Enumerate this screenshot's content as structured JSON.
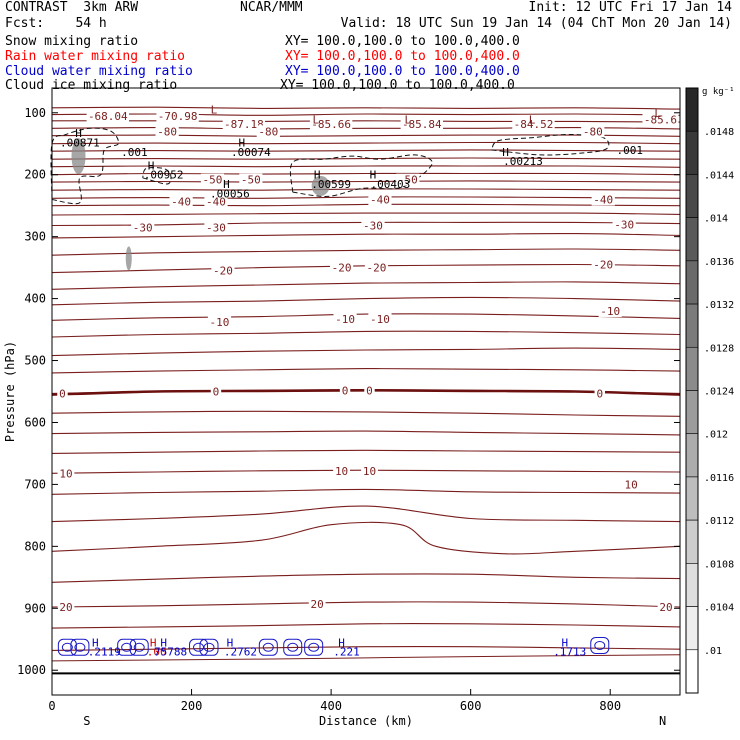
{
  "header": {
    "left_line1": "CONTRAST  3km ARW",
    "center_line1": "NCAR/MMM",
    "right_line1": "Init: 12 UTC Fri 17 Jan 14",
    "left_line2": "Fcst:    54 h",
    "right_line2": "Valid: 18 UTC Sun 19 Jan 14 (04 ChT Mon 20 Jan 14)",
    "fields": [
      {
        "name": "Snow mixing ratio",
        "xy": "XY= 100.0,100.0 to 100.0,400.0",
        "color": "#000000"
      },
      {
        "name": "Rain water mixing ratio",
        "xy": "XY= 100.0,100.0 to 100.0,400.0",
        "color": "#ff0000"
      },
      {
        "name": "Cloud water mixing ratio",
        "xy": "XY= 100.0,100.0 to 100.0,400.0",
        "color": "#0000cc"
      },
      {
        "name": "Cloud ice mixing ratio",
        "xy": "XY= 100.0,100.0 to 100.0,400.0",
        "color": "#000000"
      }
    ]
  },
  "chart_data": {
    "type": "contour cross-section",
    "xlabel": "Distance (km)",
    "ylabel": "Pressure (hPa)",
    "xlim": [
      0,
      900
    ],
    "ylim": [
      1040,
      60
    ],
    "x_ticks": [
      0,
      200,
      400,
      600,
      800
    ],
    "y_ticks": [
      100,
      200,
      300,
      400,
      500,
      600,
      700,
      800,
      900,
      1000
    ],
    "x_end_labels": {
      "left": "S",
      "right": "N"
    },
    "colorbar": {
      "unit": "g kg⁻¹",
      "labels": [
        ".0148",
        ".0144",
        ".014",
        ".0136",
        ".0132",
        ".0128",
        ".0124",
        ".012",
        ".0116",
        ".0112",
        ".0108",
        ".0104",
        ".01"
      ]
    },
    "temperature_contours": [
      {
        "level": -60,
        "x": [
          0,
          150,
          300,
          450,
          600,
          750,
          900
        ],
        "p": [
          92,
          91,
          93,
          92,
          93,
          92,
          94
        ]
      },
      {
        "level": -70,
        "x": [
          0,
          150,
          300,
          450,
          600,
          750,
          900
        ],
        "p": [
          103,
          102,
          104,
          102,
          103,
          102,
          104
        ]
      },
      {
        "level": -80,
        "x": [
          0,
          150,
          300,
          450,
          600,
          750,
          900
        ],
        "p": [
          113,
          113,
          114,
          113,
          114,
          114,
          115
        ]
      },
      {
        "level": -80,
        "x": [
          0,
          150,
          300,
          450,
          600,
          750,
          900
        ],
        "p": [
          125,
          124,
          126,
          125,
          125,
          124,
          126
        ]
      },
      {
        "level": -80,
        "x": [
          0,
          150,
          300,
          450,
          600,
          750,
          900
        ],
        "p": [
          137,
          136,
          138,
          137,
          136,
          136,
          138
        ]
      },
      {
        "level": -70,
        "x": [
          0,
          150,
          300,
          450,
          600,
          750,
          900
        ],
        "p": [
          150,
          149,
          150,
          149,
          148,
          148,
          150
        ]
      },
      {
        "level": -70,
        "x": [
          0,
          150,
          300,
          450,
          600,
          750,
          900
        ],
        "p": [
          162,
          161,
          162,
          161,
          160,
          161,
          162
        ]
      },
      {
        "level": -60,
        "x": [
          0,
          150,
          300,
          450,
          600,
          750,
          900
        ],
        "p": [
          175,
          174,
          175,
          174,
          173,
          174,
          175
        ]
      },
      {
        "level": -60,
        "x": [
          0,
          150,
          300,
          450,
          600,
          750,
          900
        ],
        "p": [
          187,
          186,
          187,
          186,
          186,
          186,
          188
        ]
      },
      {
        "level": -50,
        "x": [
          0,
          150,
          300,
          450,
          600,
          750,
          900
        ],
        "p": [
          200,
          198,
          199,
          198,
          198,
          198,
          200
        ]
      },
      {
        "level": -50,
        "x": [
          0,
          150,
          300,
          450,
          600,
          750,
          900
        ],
        "p": [
          212,
          211,
          212,
          211,
          210,
          211,
          212
        ]
      },
      {
        "level": -40,
        "x": [
          0,
          150,
          300,
          450,
          600,
          750,
          900
        ],
        "p": [
          225,
          224,
          225,
          223,
          223,
          224,
          225
        ]
      },
      {
        "level": -40,
        "x": [
          0,
          150,
          300,
          450,
          600,
          750,
          900
        ],
        "p": [
          238,
          237,
          238,
          236,
          236,
          237,
          238
        ]
      },
      {
        "level": -40,
        "x": [
          0,
          150,
          300,
          450,
          600,
          750,
          900
        ],
        "p": [
          250,
          249,
          250,
          248,
          248,
          249,
          250
        ]
      },
      {
        "level": -30,
        "x": [
          0,
          150,
          300,
          450,
          600,
          750,
          900
        ],
        "p": [
          265,
          264,
          263,
          262,
          262,
          262,
          264
        ]
      },
      {
        "level": -30,
        "x": [
          0,
          150,
          300,
          450,
          600,
          750,
          900
        ],
        "p": [
          282,
          281,
          278,
          277,
          277,
          277,
          279
        ]
      },
      {
        "level": -30,
        "x": [
          0,
          150,
          300,
          450,
          600,
          750,
          900
        ],
        "p": [
          302,
          300,
          298,
          296,
          296,
          295,
          298
        ]
      },
      {
        "level": -20,
        "x": [
          0,
          150,
          300,
          450,
          600,
          750,
          900
        ],
        "p": [
          330,
          326,
          324,
          322,
          321,
          320,
          322
        ]
      },
      {
        "level": -20,
        "x": [
          0,
          150,
          300,
          450,
          600,
          750,
          900
        ],
        "p": [
          358,
          354,
          350,
          347,
          346,
          345,
          347
        ]
      },
      {
        "level": -20,
        "x": [
          0,
          150,
          300,
          450,
          600,
          750,
          900
        ],
        "p": [
          385,
          381,
          378,
          375,
          374,
          373,
          376
        ]
      },
      {
        "level": -10,
        "x": [
          0,
          150,
          300,
          450,
          600,
          750,
          900
        ],
        "p": [
          410,
          406,
          404,
          400,
          398,
          400,
          404
        ]
      },
      {
        "level": -10,
        "x": [
          0,
          150,
          300,
          450,
          600,
          750,
          900
        ],
        "p": [
          435,
          431,
          429,
          425,
          425,
          428,
          432
        ]
      },
      {
        "level": -10,
        "x": [
          0,
          150,
          300,
          450,
          600,
          750,
          900
        ],
        "p": [
          462,
          458,
          456,
          453,
          453,
          455,
          458
        ]
      },
      {
        "level": 0,
        "x": [
          0,
          150,
          300,
          450,
          600,
          750,
          900
        ],
        "p": [
          492,
          488,
          485,
          483,
          482,
          480,
          482
        ]
      },
      {
        "level": 0,
        "x": [
          0,
          150,
          300,
          450,
          600,
          750,
          900
        ],
        "p": [
          520,
          517,
          515,
          513,
          514,
          515,
          517
        ]
      },
      {
        "level": 0,
        "x": [
          0,
          150,
          300,
          450,
          600,
          750,
          900
        ],
        "p": [
          553,
          550,
          548,
          547,
          548,
          550,
          553
        ]
      },
      {
        "level": 0,
        "x": [
          0,
          150,
          300,
          450,
          600,
          750,
          900
        ],
        "p": [
          585,
          583,
          582,
          583,
          585,
          588,
          590
        ]
      },
      {
        "level": 0,
        "x": [
          0,
          150,
          300,
          450,
          600,
          750,
          900
        ],
        "p": [
          618,
          616,
          615,
          614,
          616,
          618,
          620
        ]
      },
      {
        "level": 10,
        "x": [
          0,
          150,
          300,
          450,
          600,
          750,
          900
        ],
        "p": [
          650,
          648,
          646,
          645,
          646,
          647,
          648
        ]
      },
      {
        "level": 10,
        "x": [
          0,
          150,
          300,
          450,
          600,
          750,
          900
        ],
        "p": [
          682,
          680,
          678,
          677,
          678,
          679,
          680
        ]
      },
      {
        "level": 10,
        "x": [
          0,
          150,
          300,
          450,
          600,
          750,
          900
        ],
        "p": [
          716,
          713,
          711,
          708,
          712,
          713,
          714
        ]
      },
      {
        "level": 10,
        "x": [
          0,
          150,
          300,
          450,
          600,
          750,
          900
        ],
        "p": [
          760,
          755,
          748,
          735,
          755,
          758,
          760
        ]
      },
      {
        "level": 10,
        "x": [
          0,
          150,
          300,
          400,
          500,
          550,
          650,
          750,
          900
        ],
        "p": [
          808,
          800,
          790,
          765,
          765,
          800,
          812,
          808,
          800
        ]
      },
      {
        "level": 20,
        "x": [
          0,
          150,
          300,
          450,
          600,
          750,
          900
        ],
        "p": [
          858,
          853,
          848,
          845,
          845,
          850,
          852
        ]
      },
      {
        "level": 20,
        "x": [
          0,
          150,
          300,
          450,
          600,
          750,
          900
        ],
        "p": [
          898,
          896,
          893,
          890,
          890,
          893,
          898
        ]
      },
      {
        "level": 20,
        "x": [
          0,
          150,
          300,
          450,
          600,
          750,
          900
        ],
        "p": [
          932,
          930,
          928,
          925,
          925,
          927,
          930
        ]
      },
      {
        "level": 20,
        "x": [
          0,
          150,
          300,
          450,
          600,
          750,
          900
        ],
        "p": [
          968,
          966,
          964,
          962,
          962,
          964,
          966
        ]
      }
    ],
    "freezing_level": {
      "x": [
        0,
        150,
        300,
        450,
        600,
        750,
        900
      ],
      "p": [
        555,
        550,
        549,
        548,
        549,
        550,
        555
      ]
    },
    "ground_level_hPa": 1005,
    "contour_labels": [
      {
        "text": "-68.04",
        "x": 80,
        "p": 105
      },
      {
        "text": "-70.98",
        "x": 180,
        "p": 105
      },
      {
        "text": "-87.18",
        "x": 275,
        "p": 118
      },
      {
        "text": "-85.66",
        "x": 400,
        "p": 118
      },
      {
        "text": "-85.84",
        "x": 530,
        "p": 118
      },
      {
        "text": "-84.52",
        "x": 690,
        "p": 118
      },
      {
        "text": "-85.6",
        "x": 872,
        "p": 111
      },
      {
        "text": "-80",
        "x": 165,
        "p": 130
      },
      {
        "text": "-80",
        "x": 310,
        "p": 130
      },
      {
        "text": "-80",
        "x": 775,
        "p": 130
      },
      {
        "text": "-50",
        "x": 230,
        "p": 208
      },
      {
        "text": "-50",
        "x": 285,
        "p": 208
      },
      {
        "text": "-50",
        "x": 510,
        "p": 208
      },
      {
        "text": "-40",
        "x": 185,
        "p": 243
      },
      {
        "text": "-40",
        "x": 235,
        "p": 243
      },
      {
        "text": "-40",
        "x": 470,
        "p": 240
      },
      {
        "text": "-40",
        "x": 790,
        "p": 240
      },
      {
        "text": "-30",
        "x": 130,
        "p": 285
      },
      {
        "text": "-30",
        "x": 235,
        "p": 285
      },
      {
        "text": "-30",
        "x": 460,
        "p": 282
      },
      {
        "text": "-30",
        "x": 820,
        "p": 280
      },
      {
        "text": "-20",
        "x": 245,
        "p": 355
      },
      {
        "text": "-20",
        "x": 415,
        "p": 350
      },
      {
        "text": "-20",
        "x": 465,
        "p": 350
      },
      {
        "text": "-20",
        "x": 790,
        "p": 345
      },
      {
        "text": "-10",
        "x": 240,
        "p": 438
      },
      {
        "text": "-10",
        "x": 420,
        "p": 433
      },
      {
        "text": "-10",
        "x": 470,
        "p": 433
      },
      {
        "text": "-10",
        "x": 800,
        "p": 420
      },
      {
        "text": "0",
        "x": 15,
        "p": 553
      },
      {
        "text": "0",
        "x": 235,
        "p": 550
      },
      {
        "text": "0",
        "x": 420,
        "p": 548
      },
      {
        "text": "0",
        "x": 455,
        "p": 548
      },
      {
        "text": "0",
        "x": 785,
        "p": 553
      },
      {
        "text": "10",
        "x": 20,
        "p": 682
      },
      {
        "text": "10",
        "x": 415,
        "p": 678
      },
      {
        "text": "10",
        "x": 455,
        "p": 678
      },
      {
        "text": "10",
        "x": 830,
        "p": 700
      },
      {
        "text": "20",
        "x": 20,
        "p": 898
      },
      {
        "text": "20",
        "x": 380,
        "p": 893
      },
      {
        "text": "20",
        "x": 880,
        "p": 898
      }
    ],
    "extrema_labels": [
      {
        "text": "L",
        "x": 232,
        "p": 95
      },
      {
        "text": "L",
        "x": 378,
        "p": 111
      },
      {
        "text": "L",
        "x": 510,
        "p": 111
      },
      {
        "text": "L",
        "x": 688,
        "p": 111
      },
      {
        "text": "L",
        "x": 868,
        "p": 100
      },
      {
        "text": "H",
        "x": 38,
        "p": 133
      },
      {
        "text": "H",
        "x": 142,
        "p": 185
      },
      {
        "text": "H",
        "x": 272,
        "p": 148
      },
      {
        "text": "H",
        "x": 250,
        "p": 215
      },
      {
        "text": "H",
        "x": 380,
        "p": 200
      },
      {
        "text": "H",
        "x": 460,
        "p": 200
      },
      {
        "text": "H",
        "x": 650,
        "p": 163
      }
    ],
    "snow_labels": [
      {
        "text": ".00871",
        "x": 40,
        "p": 148
      },
      {
        "text": ".001",
        "x": 118,
        "p": 163
      },
      {
        "text": ".00952",
        "x": 160,
        "p": 200
      },
      {
        "text": ".00074",
        "x": 285,
        "p": 163
      },
      {
        "text": ".00056",
        "x": 255,
        "p": 230
      },
      {
        "text": ".00599",
        "x": 400,
        "p": 215
      },
      {
        "text": ".00403",
        "x": 485,
        "p": 215
      },
      {
        "text": ".00213",
        "x": 675,
        "p": 178
      },
      {
        "text": ".001",
        "x": 828,
        "p": 160
      }
    ],
    "cloud_labels": [
      {
        "text": "H",
        "x": 62,
        "p": 955,
        "color": "#0000cc"
      },
      {
        "text": ".2119",
        "x": 75,
        "p": 970,
        "color": "#0000cc"
      },
      {
        "text": "H",
        "x": 145,
        "p": 955,
        "color": "#cc0000"
      },
      {
        "text": "H",
        "x": 160,
        "p": 955,
        "color": "#0000cc"
      },
      {
        "text": ".00",
        "x": 150,
        "p": 970,
        "color": "#cc0000"
      },
      {
        "text": "75788",
        "x": 170,
        "p": 970,
        "color": "#0000cc"
      },
      {
        "text": "H",
        "x": 255,
        "p": 955,
        "color": "#0000cc"
      },
      {
        "text": ".2762",
        "x": 270,
        "p": 970,
        "color": "#0000cc"
      },
      {
        "text": "H",
        "x": 415,
        "p": 955,
        "color": "#0000cc"
      },
      {
        "text": ".221",
        "x": 422,
        "p": 970,
        "color": "#0000cc"
      },
      {
        "text": "H",
        "x": 735,
        "p": 955,
        "color": "#0000cc"
      },
      {
        "text": ".1713",
        "x": 742,
        "p": 970,
        "color": "#0000cc"
      }
    ],
    "cloud_water_cells": [
      {
        "x": 22,
        "p": 963
      },
      {
        "x": 40,
        "p": 963
      },
      {
        "x": 107,
        "p": 963
      },
      {
        "x": 125,
        "p": 963
      },
      {
        "x": 210,
        "p": 963
      },
      {
        "x": 225,
        "p": 963
      },
      {
        "x": 310,
        "p": 963
      },
      {
        "x": 345,
        "p": 963
      },
      {
        "x": 375,
        "p": 963
      },
      {
        "x": 785,
        "p": 960
      }
    ]
  }
}
